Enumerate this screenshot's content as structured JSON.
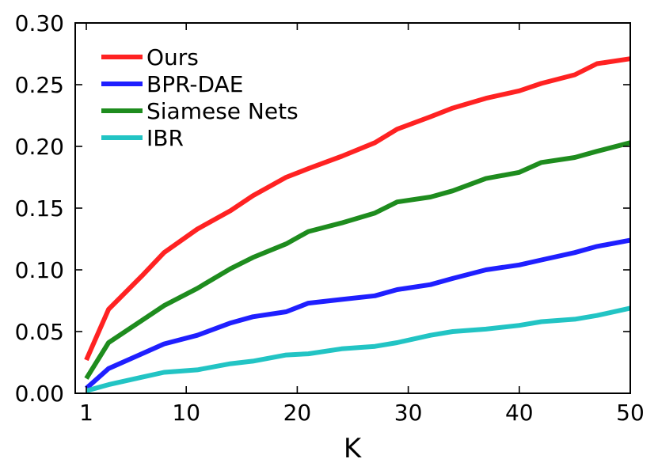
{
  "chart_data": {
    "type": "line",
    "title": "",
    "xlabel": "K",
    "ylabel": "",
    "xlim": [
      0,
      50
    ],
    "ylim": [
      0.0,
      0.3
    ],
    "xticks": [
      1,
      10,
      20,
      30,
      40,
      50
    ],
    "xtick_labels": [
      "1",
      "10",
      "20",
      "30",
      "40",
      "50"
    ],
    "yticks": [
      0.0,
      0.05,
      0.1,
      0.15,
      0.2,
      0.25,
      0.3
    ],
    "ytick_labels": [
      "0.00",
      "0.05",
      "0.10",
      "0.15",
      "0.20",
      "0.25",
      "0.30"
    ],
    "grid": false,
    "legend_position": "top-left",
    "x": [
      1,
      3,
      6,
      8,
      11,
      14,
      16,
      19,
      21,
      24,
      27,
      29,
      32,
      34,
      37,
      40,
      42,
      45,
      47,
      50
    ],
    "series": [
      {
        "name": "Ours",
        "color": "#ff2222",
        "values": [
          0.027,
          0.068,
          0.095,
          0.114,
          0.133,
          0.148,
          0.16,
          0.175,
          0.182,
          0.192,
          0.203,
          0.214,
          0.224,
          0.231,
          0.239,
          0.245,
          0.251,
          0.258,
          0.267,
          0.271
        ]
      },
      {
        "name": "BPR-DAE",
        "color": "#1f1fff",
        "values": [
          0.004,
          0.02,
          0.032,
          0.04,
          0.047,
          0.057,
          0.062,
          0.066,
          0.073,
          0.076,
          0.079,
          0.084,
          0.088,
          0.093,
          0.1,
          0.104,
          0.108,
          0.114,
          0.119,
          0.124
        ]
      },
      {
        "name": "Siamese Nets",
        "color": "#1e8c1e",
        "values": [
          0.012,
          0.041,
          0.059,
          0.071,
          0.085,
          0.101,
          0.11,
          0.121,
          0.131,
          0.138,
          0.146,
          0.155,
          0.159,
          0.164,
          0.174,
          0.179,
          0.187,
          0.191,
          0.196,
          0.203
        ]
      },
      {
        "name": "IBR",
        "color": "#22c4c4",
        "values": [
          0.002,
          0.007,
          0.013,
          0.017,
          0.019,
          0.024,
          0.026,
          0.031,
          0.032,
          0.036,
          0.038,
          0.041,
          0.047,
          0.05,
          0.052,
          0.055,
          0.058,
          0.06,
          0.063,
          0.069
        ]
      }
    ]
  }
}
